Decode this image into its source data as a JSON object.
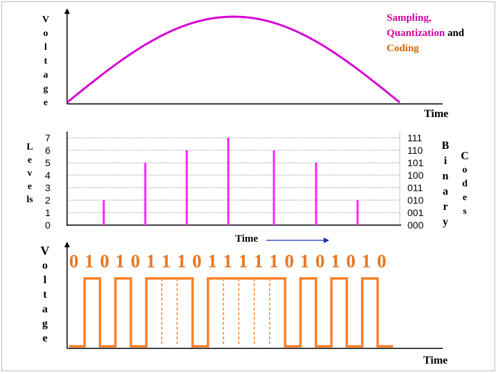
{
  "title": {
    "sampling": "Sampling,",
    "quantization": "Quantization",
    "and": "and",
    "coding": "Coding"
  },
  "top_panel": {
    "ylabel_letters": [
      "V",
      "o",
      "l",
      "t",
      "a",
      "g",
      "e"
    ],
    "xlabel": "Time"
  },
  "middle_panel": {
    "ylabel_letters": [
      "L",
      "e",
      "v",
      "e",
      "ls"
    ],
    "levels": [
      "7",
      "6",
      "5",
      "4",
      "3",
      "2",
      "1",
      "0"
    ],
    "codes": [
      "111",
      "110",
      "101",
      "100",
      "011",
      "010",
      "001",
      "000"
    ],
    "binary_letters": [
      "B",
      "i",
      "n",
      "a",
      "r",
      "y"
    ],
    "codes_letters": [
      "C",
      "o",
      "d",
      "e",
      "s"
    ],
    "xlabel": "Time"
  },
  "bottom_panel": {
    "ylabel_letters": [
      "V",
      "o",
      "l",
      "t",
      "a",
      "g",
      "e"
    ],
    "bit_string": "0 1 0 1 0 1 1 1 0 1 1 1 1 1 0 1 0 1 0 1 0",
    "xlabel": "Time"
  },
  "colors": {
    "curve": "#d400d4",
    "sample": "#ff22ff",
    "pulse": "#ff7f27",
    "title_magenta": "#d400a0",
    "title_orange": "#cc6600"
  },
  "samples": [
    2,
    5,
    6,
    7,
    6,
    5,
    2
  ],
  "bits": [
    0,
    1,
    0,
    1,
    0,
    1,
    1,
    1,
    0,
    1,
    1,
    1,
    1,
    1,
    0,
    1,
    0,
    1,
    0,
    1,
    0
  ]
}
